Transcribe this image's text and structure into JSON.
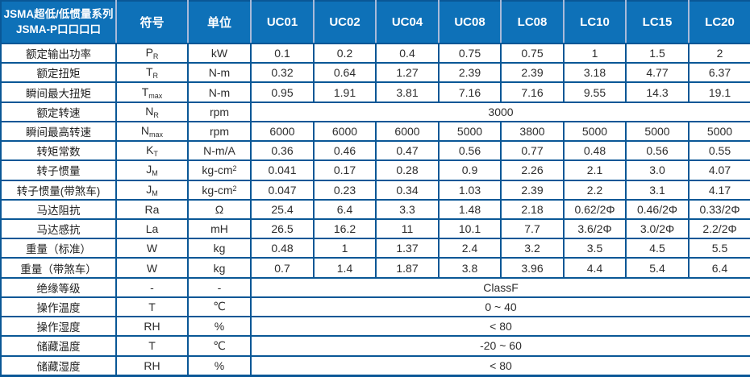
{
  "colors": {
    "header_bg": "#0E71B8",
    "grid_border": "#0A5796",
    "header_divider": "#A9BAD9",
    "text": "#2D2D2D",
    "header_text": "#FFFFFF"
  },
  "table": {
    "title_line1": "JSMA超低/低惯量系列",
    "title_line2": "JSMA-P口口口口",
    "symbol_header": "符号",
    "unit_header": "单位",
    "models": [
      "UC01",
      "UC02",
      "UC04",
      "UC08",
      "LC08",
      "LC10",
      "LC15",
      "LC20"
    ],
    "rows": [
      {
        "label": "额定输出功率",
        "symbol": "P_R",
        "unit": "kW",
        "values": [
          "0.1",
          "0.2",
          "0.4",
          "0.75",
          "0.75",
          "1",
          "1.5",
          "2"
        ]
      },
      {
        "label": "额定扭矩",
        "symbol": "T_R",
        "unit": "N-m",
        "values": [
          "0.32",
          "0.64",
          "1.27",
          "2.39",
          "2.39",
          "3.18",
          "4.77",
          "6.37"
        ]
      },
      {
        "label": "瞬间最大扭矩",
        "symbol": "T_max",
        "unit": "N-m",
        "values": [
          "0.95",
          "1.91",
          "3.81",
          "7.16",
          "7.16",
          "9.55",
          "14.3",
          "19.1"
        ]
      },
      {
        "label": "额定转速",
        "symbol": "N_R",
        "unit": "rpm",
        "merged": "3000"
      },
      {
        "label": "瞬间最高转速",
        "symbol": "N_max",
        "unit": "rpm",
        "values": [
          "6000",
          "6000",
          "6000",
          "5000",
          "3800",
          "5000",
          "5000",
          "5000"
        ]
      },
      {
        "label": "转矩常数",
        "symbol": "K_T",
        "unit": "N-m/A",
        "values": [
          "0.36",
          "0.46",
          "0.47",
          "0.56",
          "0.77",
          "0.48",
          "0.56",
          "0.55"
        ]
      },
      {
        "label": "转子惯量",
        "symbol": "J_M",
        "unit": "kg-cm^2",
        "values": [
          "0.041",
          "0.17",
          "0.28",
          "0.9",
          "2.26",
          "2.1",
          "3.0",
          "4.07"
        ]
      },
      {
        "label": "转子惯量(带煞车)",
        "symbol": "J_M",
        "unit": "kg-cm^2",
        "values": [
          "0.047",
          "0.23",
          "0.34",
          "1.03",
          "2.39",
          "2.2",
          "3.1",
          "4.17"
        ]
      },
      {
        "label": "马达阻抗",
        "symbol": "Ra",
        "unit": "Ω",
        "values": [
          "25.4",
          "6.4",
          "3.3",
          "1.48",
          "2.18",
          "0.62/2Φ",
          "0.46/2Φ",
          "0.33/2Φ"
        ]
      },
      {
        "label": "马达感抗",
        "symbol": "La",
        "unit": "mH",
        "values": [
          "26.5",
          "16.2",
          "11",
          "10.1",
          "7.7",
          "3.6/2Φ",
          "3.0/2Φ",
          "2.2/2Φ"
        ]
      },
      {
        "label": "重量（标准）",
        "symbol": "W",
        "unit": "kg",
        "values": [
          "0.48",
          "1",
          "1.37",
          "2.4",
          "3.2",
          "3.5",
          "4.5",
          "5.5"
        ]
      },
      {
        "label": "重量（带煞车）",
        "symbol": "W",
        "unit": "kg",
        "values": [
          "0.7",
          "1.4",
          "1.87",
          "3.8",
          "3.96",
          "4.4",
          "5.4",
          "6.4"
        ]
      },
      {
        "label": "绝缘等级",
        "symbol": "-",
        "unit": "-",
        "merged": "ClassF"
      },
      {
        "label": "操作温度",
        "symbol": "T",
        "unit": "℃",
        "merged": "0 ~ 40"
      },
      {
        "label": "操作湿度",
        "symbol": "RH",
        "unit": "%",
        "merged": "< 80"
      },
      {
        "label": "储藏温度",
        "symbol": "T",
        "unit": "℃",
        "merged": "-20 ~ 60"
      },
      {
        "label": "储藏湿度",
        "symbol": "RH",
        "unit": "%",
        "merged": "< 80"
      }
    ]
  }
}
